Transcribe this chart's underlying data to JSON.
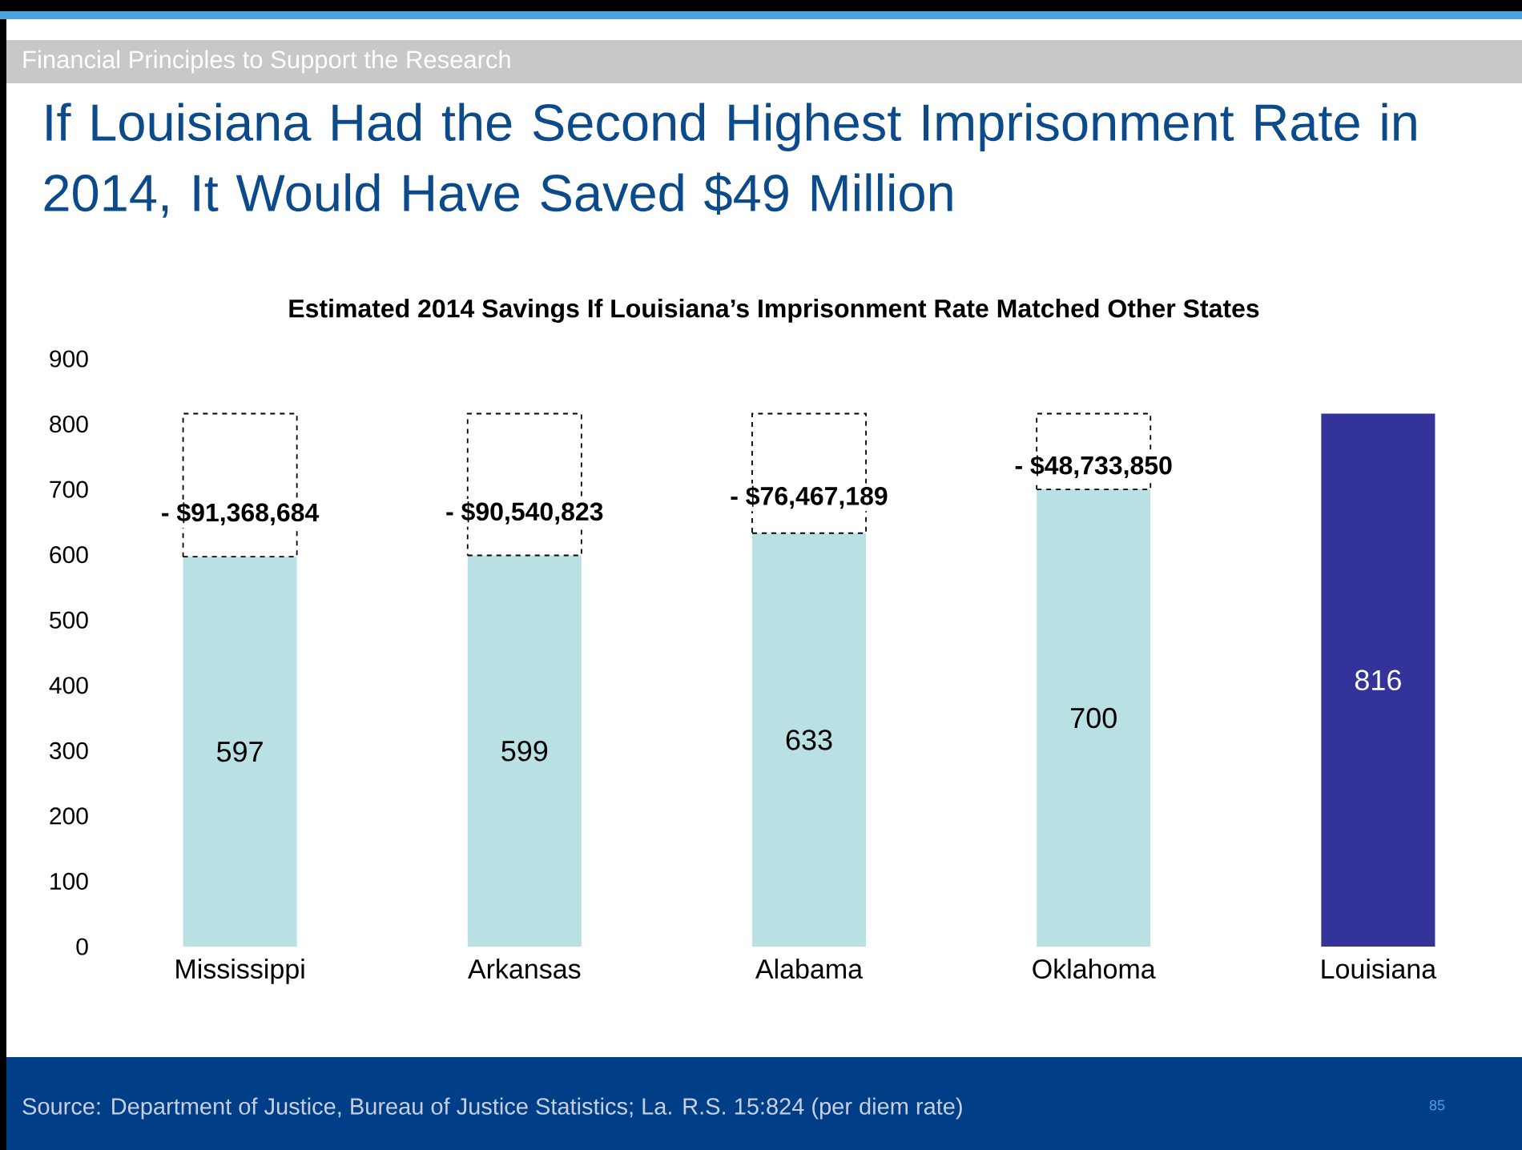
{
  "chart_data": {
    "type": "bar",
    "stacked": true,
    "title": "If Louisiana Had the Second Highest Imprisonment Rate in 2014, It Would Have Saved $49 Million",
    "subtitle": "Estimated 2014 Savings If Louisiana’s Imprisonment Rate Matched Other States",
    "categories": [
      "Mississippi",
      "Arkansas",
      "Alabama",
      "Oklahoma",
      "Louisiana"
    ],
    "series": [
      {
        "colors": [
          "#b9e0e2",
          "#b9e0e2",
          "#b9e0e2",
          "#b9e0e2",
          "#333399"
        ],
        "values": [
          597,
          599,
          633,
          700,
          816
        ],
        "value_labels": [
          "597",
          "599",
          "633",
          "700",
          "816"
        ]
      },
      {
        "color": "#000000",
        "line_style": "dashed",
        "values": [
          219,
          217,
          183,
          116,
          null
        ]
      }
    ],
    "ylim": [
      0,
      900
    ],
    "yticks": [
      0,
      100,
      200,
      300,
      400,
      500,
      600,
      700,
      800,
      900
    ],
    "annotations": [
      "Financial Principles to Support the Research",
      "Source:  Department of Justice, Bureau of Justice Statistics; La. R.S. 15:824 (per diem rate)",
      "85",
      "- $91,368,684",
      "- $90,540,823",
      "- $76,467,189",
      "- $48,733,850"
    ]
  }
}
